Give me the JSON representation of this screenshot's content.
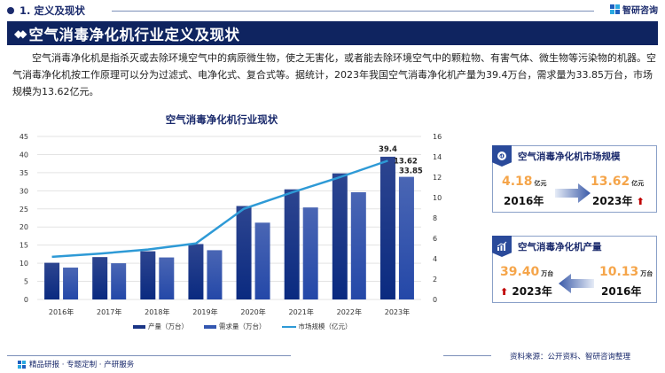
{
  "section": {
    "label": "1. 定义及现状"
  },
  "brand": {
    "name": "智研咨询"
  },
  "title_bar": {
    "label": "空气消毒净化机行业定义及现状",
    "icon": "diamond-icon"
  },
  "intro": {
    "text": "空气消毒净化机是指杀灭或去除环境空气中的病原微生物，使之无害化，或者能去除环境空气中的颗粒物、有害气体、微生物等污染物的机器。空气消毒净化机按工作原理可以分为过滤式、电净化式、复合式等。据统计，2023年我国空气消毒净化机产量为39.4万台，需求量为33.85万台，市场规模为13.62亿元。"
  },
  "chart_data": {
    "type": "bar",
    "title": "空气消毒净化机行业现状",
    "categories": [
      "2016年",
      "2017年",
      "2018年",
      "2019年",
      "2020年",
      "2021年",
      "2022年",
      "2023年"
    ],
    "series": [
      {
        "name": "产量（万台）",
        "type": "bar",
        "axis": "left",
        "color": "#1a3585",
        "values": [
          10.13,
          11.7,
          13.3,
          15.3,
          25.8,
          30.4,
          34.8,
          39.4
        ]
      },
      {
        "name": "需求量（万台）",
        "type": "bar",
        "axis": "left",
        "color": "#3357b0",
        "values": [
          8.8,
          10.0,
          11.6,
          13.6,
          21.2,
          25.4,
          29.6,
          33.85
        ]
      },
      {
        "name": "市场规模（亿元）",
        "type": "line",
        "axis": "right",
        "color": "#2e9ad6",
        "values": [
          4.18,
          4.5,
          4.9,
          5.5,
          8.9,
          10.5,
          12.0,
          13.62
        ]
      }
    ],
    "left_axis": {
      "ticks": [
        "0",
        "5",
        "10",
        "15",
        "20",
        "25",
        "30",
        "35",
        "40",
        "45"
      ],
      "ylim": [
        0,
        45
      ]
    },
    "right_axis": {
      "ticks": [
        "0",
        "2",
        "4",
        "6",
        "8",
        "10",
        "12",
        "14",
        "16"
      ],
      "ylim": [
        0,
        16
      ]
    },
    "data_labels": {
      "production_2023": "39.4",
      "market_2023": "13.62",
      "demand_2023": "33.85"
    },
    "xlabel": "",
    "ylabel": "",
    "grid": true,
    "legend_position": "bottom"
  },
  "legend": [
    {
      "label": "产量（万台）",
      "color": "#1a3585"
    },
    {
      "label": "需求量（万台）",
      "color": "#3357b0"
    },
    {
      "label": "市场规模（亿元）",
      "color": "#2e9ad6"
    }
  ],
  "card_market": {
    "title": "空气消毒净化机市场规模",
    "icon": "pie-chart-icon",
    "from_value": "4.18",
    "from_unit": "亿元",
    "from_year": "2016年",
    "to_value": "13.62",
    "to_unit": "亿元",
    "to_year": "2023年",
    "trend_icon": "up-arrow-icon"
  },
  "card_production": {
    "title": "空气消毒净化机产量",
    "icon": "bar-growth-icon",
    "to_value": "39.40",
    "to_unit": "万台",
    "to_year": "2023年",
    "from_value": "10.13",
    "from_unit": "万台",
    "from_year": "2016年",
    "trend_icon": "up-arrow-icon"
  },
  "footer": {
    "left": "精品研报 · 专题定制 · 产研服务",
    "right": "资料来源：公开资料、智研咨询整理"
  }
}
